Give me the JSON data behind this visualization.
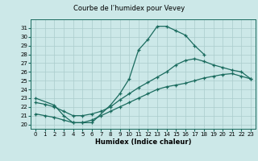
{
  "title": "Courbe de l’humidex pour Vevey",
  "xlabel": "Humidex (Indice chaleur)",
  "bg_color": "#cce8e8",
  "grid_color": "#aacccc",
  "line_color": "#1a6b5e",
  "x_ticks": [
    0,
    1,
    2,
    3,
    4,
    5,
    6,
    7,
    8,
    9,
    10,
    11,
    12,
    13,
    14,
    15,
    16,
    17,
    18,
    19,
    20,
    21,
    22,
    23
  ],
  "y_ticks": [
    20,
    21,
    22,
    23,
    24,
    25,
    26,
    27,
    28,
    29,
    30,
    31
  ],
  "xlim": [
    -0.5,
    23.5
  ],
  "ylim": [
    19.5,
    32.0
  ],
  "line1_x": [
    0,
    2,
    3,
    4,
    5,
    6,
    8,
    9,
    10,
    11,
    12,
    13,
    14,
    15,
    16,
    17,
    18
  ],
  "line1_y": [
    23.0,
    22.2,
    21.0,
    20.2,
    20.2,
    20.2,
    22.2,
    23.5,
    25.2,
    28.5,
    29.7,
    31.2,
    31.2,
    30.7,
    30.2,
    29.0,
    28.0
  ],
  "line2_x": [
    0,
    1,
    2,
    3,
    4,
    5,
    6,
    7,
    8,
    9,
    10,
    11,
    12,
    13,
    14,
    15,
    16,
    17,
    18,
    19,
    20,
    21,
    22,
    23
  ],
  "line2_y": [
    22.5,
    22.3,
    22.0,
    21.5,
    21.0,
    21.0,
    21.2,
    21.5,
    22.0,
    22.8,
    23.5,
    24.2,
    24.8,
    25.4,
    26.0,
    26.8,
    27.3,
    27.5,
    27.2,
    26.8,
    26.5,
    26.2,
    26.0,
    25.2
  ],
  "line3_x": [
    0,
    1,
    2,
    3,
    4,
    5,
    6,
    7,
    8,
    9,
    10,
    11,
    12,
    13,
    14,
    15,
    16,
    17,
    18,
    19,
    20,
    21,
    22,
    23
  ],
  "line3_y": [
    21.2,
    21.0,
    20.8,
    20.5,
    20.2,
    20.2,
    20.5,
    21.0,
    21.5,
    22.0,
    22.5,
    23.0,
    23.5,
    24.0,
    24.3,
    24.5,
    24.7,
    25.0,
    25.3,
    25.5,
    25.7,
    25.8,
    25.5,
    25.2
  ]
}
